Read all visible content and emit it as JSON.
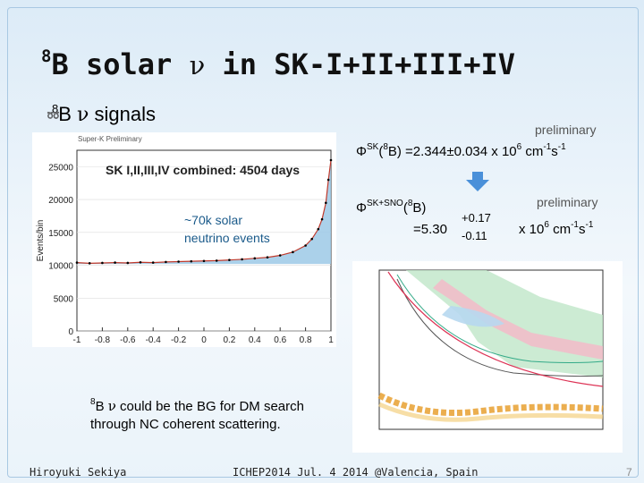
{
  "slide": {
    "title_pre": "8",
    "title_main": "B solar ",
    "title_nu": "ν",
    "title_rest": " in SK-I+II+III+IV",
    "bullet_sup": "8",
    "bullet_b": "B ",
    "bullet_nu": "ν",
    "bullet_rest": " signals",
    "hist_header": "Super-K Preliminary",
    "hist_label": "SK I,II,III,IV combined: 4504 days",
    "events_line1": "~70k solar",
    "events_line2": "neutrino events",
    "prelim1": "preliminary",
    "flux1_phi": "Φ",
    "flux1_sup": "SK",
    "flux1_b": "(",
    "flux1_bsup": "8",
    "flux1_rest": "B) =2.344±0.034 x 10",
    "flux1_exp": "6",
    "flux1_unit": " cm",
    "flux1_unitexp1": "-1",
    "flux1_s": "s",
    "flux1_unitexp2": "-1",
    "flux2_phi": "Φ",
    "flux2_sup": "SK+SNO",
    "flux2_b": "(",
    "flux2_bsup": "8",
    "flux2_rest": "B)",
    "flux2_value": "=5.30",
    "flux2_err_up": "+0.17",
    "flux2_err_dn": "-0.11",
    "prelim2": "preliminary",
    "units2": "x 10",
    "units2_exp": "6",
    "units2_cm": " cm",
    "units2_cmexp": "-1",
    "units2_s": "s",
    "units2_sexp": "-1",
    "note_sup": "8",
    "note_b": "B ",
    "note_nu": "ν",
    "note_rest": " could be the BG for DM search",
    "note_line2": "through NC coherent scattering.",
    "footer_left": "Hiroyuki Sekiya",
    "footer_center": "ICHEP2014 Jul. 4 2014 @Valencia, Spain",
    "footer_page": "7"
  },
  "chart_data": {
    "type": "line",
    "xlabel": "",
    "ylabel": "Events/bin",
    "xlim": [
      -1,
      1
    ],
    "ylim": [
      0,
      27500
    ],
    "x_ticks": [
      "-1",
      "-0.8",
      "-0.6",
      "-0.4",
      "-0.2",
      "0",
      "0.2",
      "0.4",
      "0.6",
      "0.8",
      "1"
    ],
    "y_ticks": [
      "0",
      "5000",
      "10000",
      "15000",
      "20000",
      "25000"
    ],
    "series": [
      {
        "x": [
          -1,
          -0.9,
          -0.8,
          -0.7,
          -0.6,
          -0.5,
          -0.4,
          -0.3,
          -0.2,
          -0.1,
          0,
          0.1,
          0.2,
          0.3,
          0.4,
          0.5,
          0.6,
          0.7,
          0.8,
          0.85,
          0.9,
          0.93,
          0.96,
          0.98,
          1
        ],
        "y": [
          10400,
          10300,
          10350,
          10400,
          10350,
          10450,
          10400,
          10500,
          10550,
          10600,
          10650,
          10700,
          10800,
          10900,
          11050,
          11200,
          11500,
          12000,
          13000,
          14000,
          15500,
          17000,
          19500,
          23000,
          26000
        ]
      }
    ]
  },
  "colors": {
    "signal_fill": "#9cc9e6",
    "data_line": "#c0392b",
    "arrow": "#4a90d9",
    "background": "#e8f2fa"
  }
}
